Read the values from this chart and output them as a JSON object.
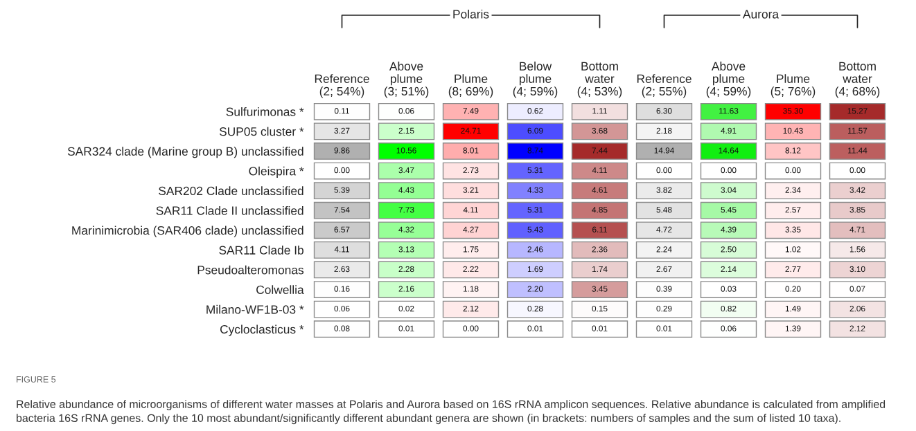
{
  "chart_data": {
    "type": "heatmap",
    "categories": [
      "Reference\n(2; 54%)",
      "Above\nplume\n(3; 51%)",
      "Plume\n(8; 69%)",
      "Below\nplume\n(4; 59%)",
      "Bottom\nwater\n(4; 53%)",
      "Reference\n(2; 55%)",
      "Above\nplume\n(4; 59%)",
      "Plume\n(5; 76%)",
      "Bottom\nwater\n(4; 68%)"
    ],
    "colors": [
      "#b0b0b0",
      "#00ff00",
      "#ff0000",
      "#0000ff",
      "#a52a2a",
      "#b0b0b0",
      "#11ee11",
      "#ff0000",
      "#a52a2a"
    ],
    "y_categories": [
      "Sulfurimonas *",
      "SUP05 cluster *",
      "SAR324 clade (Marine group B) unclassified",
      "Oleispira *",
      "SAR202 Clade unclassified",
      "SAR11 Clade II unclassified",
      "Marinimicrobia (SAR406 clade) unclassified",
      "SAR11 Clade Ib",
      "Pseudoalteromonas",
      "Colwellia",
      "Milano-WF1B-03 *",
      "Cycloclasticus *"
    ],
    "cells": [
      [
        0.11,
        0.06,
        7.49,
        0.62,
        1.11,
        6.3,
        11.63,
        35.3,
        15.27
      ],
      [
        3.27,
        2.15,
        24.71,
        6.09,
        3.68,
        2.18,
        4.91,
        10.43,
        11.57
      ],
      [
        9.86,
        10.56,
        8.01,
        8.74,
        7.44,
        14.94,
        14.64,
        8.12,
        11.44
      ],
      [
        0.0,
        3.47,
        2.73,
        5.31,
        4.11,
        0.0,
        0.0,
        0.0,
        0.0
      ],
      [
        5.39,
        4.43,
        3.21,
        4.33,
        4.61,
        3.82,
        3.04,
        2.34,
        3.42
      ],
      [
        7.54,
        7.73,
        4.11,
        5.31,
        4.85,
        5.48,
        5.45,
        2.57,
        3.85
      ],
      [
        6.57,
        4.32,
        4.27,
        5.43,
        6.11,
        4.72,
        4.39,
        3.35,
        4.71
      ],
      [
        4.11,
        3.13,
        1.75,
        2.46,
        2.36,
        2.24,
        2.5,
        1.02,
        1.56
      ],
      [
        2.63,
        2.28,
        2.22,
        1.69,
        1.74,
        2.67,
        2.14,
        2.77,
        3.1
      ],
      [
        0.16,
        2.16,
        1.18,
        2.2,
        3.45,
        0.39,
        0.03,
        0.2,
        0.07
      ],
      [
        0.06,
        0.02,
        2.12,
        0.28,
        0.15,
        0.29,
        0.82,
        1.49,
        2.06
      ],
      [
        0.08,
        0.01,
        0.0,
        0.01,
        0.01,
        0.01,
        0.06,
        1.39,
        2.12
      ]
    ],
    "cell_labels": [
      [
        "0.11",
        "0.06",
        "7.49",
        "0.62",
        "1.11",
        "6.30",
        "11.63",
        "35.30",
        "15.27"
      ],
      [
        "3.27",
        "2.15",
        "24.71",
        "6.09",
        "3.68",
        "2.18",
        "4.91",
        "10.43",
        "11.57"
      ],
      [
        "9.86",
        "10.56",
        "8.01",
        "8.74",
        "7.44",
        "14.94",
        "14.64",
        "8.12",
        "11.44"
      ],
      [
        "0.00",
        "3.47",
        "2.73",
        "5.31",
        "4.11",
        "0.00",
        "0.00",
        "0.00",
        "0.00"
      ],
      [
        "5.39",
        "4.43",
        "3.21",
        "4.33",
        "4.61",
        "3.82",
        "3.04",
        "2.34",
        "3.42"
      ],
      [
        "7.54",
        "7.73",
        "4.11",
        "5.31",
        "4.85",
        "5.48",
        "5.45",
        "2.57",
        "3.85"
      ],
      [
        "6.57",
        "4.32",
        "4.27",
        "5.43",
        "6.11",
        "4.72",
        "4.39",
        "3.35",
        "4.71"
      ],
      [
        "4.11",
        "3.13",
        "1.75",
        "2.46",
        "2.36",
        "2.24",
        "2.50",
        "1.02",
        "1.56"
      ],
      [
        "2.63",
        "2.28",
        "2.22",
        "1.69",
        "1.74",
        "2.67",
        "2.14",
        "2.77",
        "3.10"
      ],
      [
        "0.16",
        "2.16",
        "1.18",
        "2.20",
        "3.45",
        "0.39",
        "0.03",
        "0.20",
        "0.07"
      ],
      [
        "0.06",
        "0.02",
        "2.12",
        "0.28",
        "0.15",
        "0.29",
        "0.82",
        "1.49",
        "2.06"
      ],
      [
        "0.08",
        "0.01",
        "0.00",
        "0.01",
        "0.01",
        "0.01",
        "0.06",
        "1.39",
        "2.12"
      ]
    ],
    "annotations": [
      "Polaris",
      "Aurora",
      "FIGURE 5",
      "Relative abundance of microorganisms of different water masses at Polaris and Aurora based on 16S rRNA amplicon sequences. Relative abundance is calculated from amplified bacteria 16S rRNA genes. Only the 10 most abundant/significantly different abundant genera are shown (in brackets: numbers of samples and the sum of listed 10 taxa)."
    ]
  }
}
